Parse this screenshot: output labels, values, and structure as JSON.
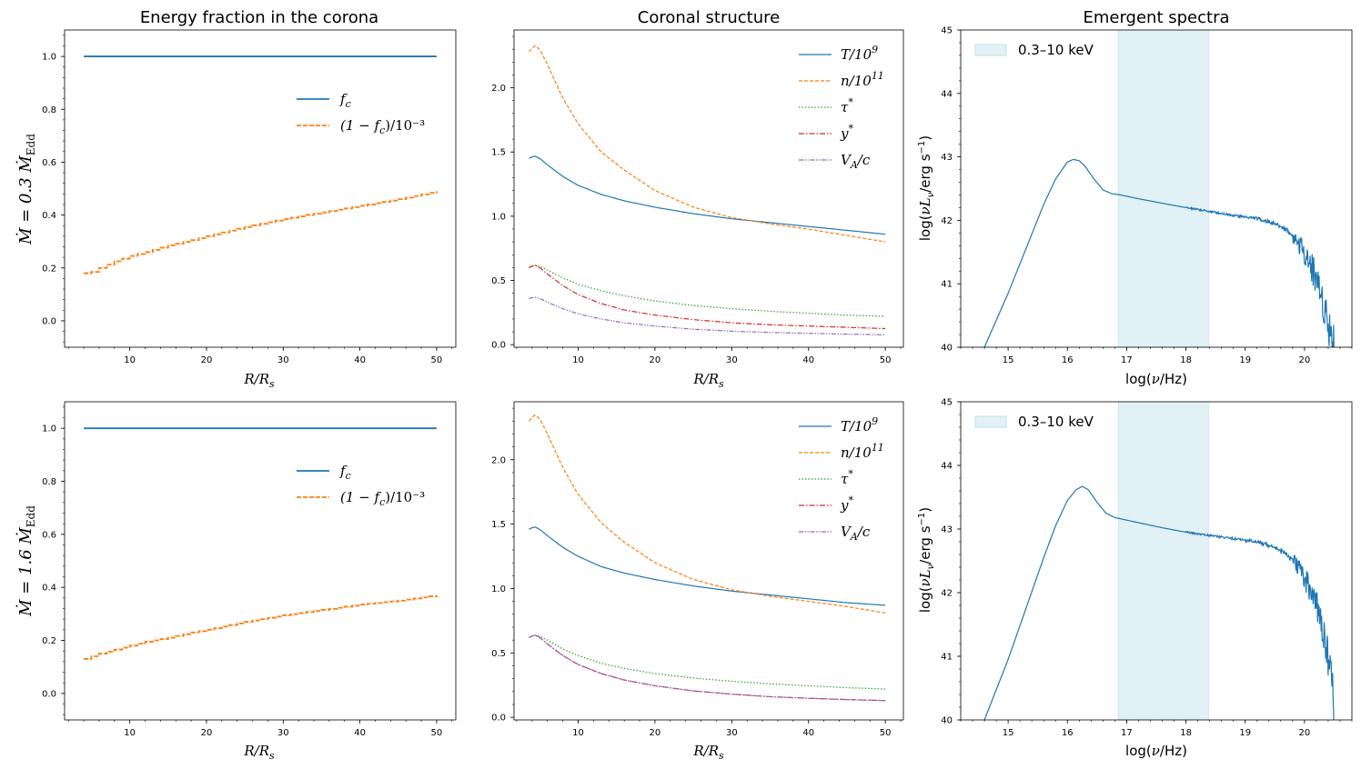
{
  "colors": {
    "blue": "#1f77b4",
    "orange": "#ff7f0e",
    "green": "#2ca02c",
    "red": "#d62728",
    "purple": "#9467bd",
    "band": "#add8e6"
  },
  "chart_data": [
    {
      "id": "p00",
      "type": "line",
      "title": "Energy fraction in the corona",
      "xlabel": "R/R_s",
      "ylabel": "Ṁ = 0.3 Ṁ_Edd",
      "xlim": [
        1.5,
        52.5
      ],
      "ylim": [
        -0.1,
        1.1
      ],
      "xticks": [
        10,
        20,
        30,
        40,
        50
      ],
      "yticks": [
        0.0,
        0.2,
        0.4,
        0.6,
        0.8,
        1.0
      ],
      "xticklabels": [
        "10",
        "20",
        "30",
        "40",
        "50"
      ],
      "yticklabels": [
        "0.0",
        "0.2",
        "0.4",
        "0.6",
        "0.8",
        "1.0"
      ],
      "legend": {
        "location": "center-right"
      },
      "series": [
        {
          "name": "f_c",
          "label_main": "f",
          "label_sub": "c",
          "label_tail": "",
          "color": "blue",
          "dash": "",
          "x": [
            4,
            50
          ],
          "y": [
            1.0,
            1.0
          ]
        },
        {
          "name": "(1 - f_c)/10^-3",
          "label_main": "(1 − f",
          "label_sub": "c",
          "label_tail": ")/10⁻³",
          "color": "orange",
          "dash": "5,2",
          "x": [
            4,
            5,
            6,
            8,
            10,
            12,
            15,
            18,
            20,
            25,
            30,
            35,
            40,
            45,
            50
          ],
          "y": [
            0.18,
            0.185,
            0.2,
            0.225,
            0.245,
            0.26,
            0.285,
            0.305,
            0.32,
            0.355,
            0.385,
            0.41,
            0.435,
            0.46,
            0.49
          ]
        }
      ]
    },
    {
      "id": "p01",
      "type": "line",
      "title": "Coronal structure",
      "xlabel": "R/R_s",
      "xlim": [
        1.65,
        52.35
      ],
      "ylim": [
        -0.02,
        2.45
      ],
      "xticks": [
        10,
        20,
        30,
        40,
        50
      ],
      "yticks": [
        0.0,
        0.5,
        1.0,
        1.5,
        2.0
      ],
      "xticklabels": [
        "10",
        "20",
        "30",
        "40",
        "50"
      ],
      "yticklabels": [
        "0.0",
        "0.5",
        "1.0",
        "1.5",
        "2.0"
      ],
      "legend": {
        "location": "upper-right"
      },
      "series": [
        {
          "name": "T/10^9",
          "label_main": "T/10",
          "label_sup": "9",
          "color": "blue",
          "dash": "",
          "x": [
            3.6,
            4.3,
            5,
            6,
            8,
            10,
            13,
            16,
            20,
            25,
            30,
            35,
            40,
            45,
            50
          ],
          "y": [
            1.45,
            1.47,
            1.45,
            1.4,
            1.31,
            1.24,
            1.17,
            1.12,
            1.07,
            1.02,
            0.98,
            0.95,
            0.92,
            0.89,
            0.86
          ]
        },
        {
          "name": "n/10^11",
          "label_main": "n/10",
          "label_sup": "11",
          "color": "orange",
          "dash": "4,2",
          "x": [
            3.6,
            4.3,
            5,
            6,
            8,
            10,
            13,
            16,
            20,
            25,
            30,
            35,
            40,
            45,
            50
          ],
          "y": [
            2.28,
            2.33,
            2.3,
            2.18,
            1.92,
            1.72,
            1.5,
            1.36,
            1.2,
            1.07,
            0.99,
            0.94,
            0.9,
            0.85,
            0.8
          ]
        },
        {
          "name": "tau*",
          "label_main": "τ",
          "label_sup": "*",
          "color": "green",
          "dash": "1.5,2",
          "x": [
            3.6,
            4.3,
            5,
            6,
            8,
            10,
            13,
            16,
            20,
            25,
            30,
            35,
            40,
            45,
            50
          ],
          "y": [
            0.6,
            0.62,
            0.61,
            0.58,
            0.52,
            0.47,
            0.42,
            0.38,
            0.34,
            0.305,
            0.28,
            0.26,
            0.245,
            0.23,
            0.22
          ]
        },
        {
          "name": "y*",
          "label_main": "y",
          "label_sup": "*",
          "color": "red",
          "dash": "6,2,1.5,2",
          "x": [
            3.6,
            4.3,
            5,
            6,
            8,
            10,
            13,
            16,
            20,
            25,
            30,
            35,
            40,
            45,
            50
          ],
          "y": [
            0.6,
            0.62,
            0.6,
            0.55,
            0.46,
            0.39,
            0.32,
            0.27,
            0.23,
            0.195,
            0.17,
            0.155,
            0.145,
            0.135,
            0.125
          ]
        },
        {
          "name": "V_A/c",
          "label_main": "V",
          "label_sub": "A",
          "label_tail": "/c",
          "color": "purple",
          "dash": "5,1.5,1.5,1.5,1.5,1.5",
          "x": [
            3.6,
            4.3,
            5,
            6,
            8,
            10,
            13,
            16,
            20,
            25,
            30,
            35,
            40,
            45,
            50
          ],
          "y": [
            0.36,
            0.37,
            0.36,
            0.33,
            0.28,
            0.24,
            0.2,
            0.17,
            0.145,
            0.12,
            0.105,
            0.095,
            0.088,
            0.082,
            0.077
          ]
        }
      ]
    },
    {
      "id": "p02",
      "type": "line",
      "title": "Emergent spectra",
      "xlabel": "log(ν/Hz)",
      "ylabel": "log(νL_ν/erg s^-1)",
      "xlim": [
        14.2,
        20.8
      ],
      "ylim": [
        40,
        45
      ],
      "xticks": [
        15,
        16,
        17,
        18,
        19,
        20
      ],
      "yticks": [
        40,
        41,
        42,
        43,
        44,
        45
      ],
      "xticklabels": [
        "15",
        "16",
        "17",
        "18",
        "19",
        "20"
      ],
      "yticklabels": [
        "40",
        "41",
        "42",
        "43",
        "44",
        "45"
      ],
      "band": {
        "x0": 16.86,
        "x1": 18.38,
        "label": "0.3–10 keV"
      },
      "legend": {
        "location": "upper-left"
      },
      "series": [
        {
          "name": "spectrum",
          "color": "blue",
          "dash": "",
          "x": [
            14.6,
            15.0,
            15.3,
            15.6,
            15.8,
            16.0,
            16.1,
            16.2,
            16.3,
            16.45,
            16.6,
            16.75,
            16.9,
            17.2,
            17.6,
            18.0,
            18.4,
            18.8,
            19.2,
            19.5,
            19.7,
            19.85,
            20.0,
            20.1,
            20.2,
            20.3,
            20.4,
            20.45,
            20.5
          ],
          "y": [
            40.0,
            40.85,
            41.55,
            42.25,
            42.65,
            42.92,
            42.96,
            42.94,
            42.85,
            42.65,
            42.48,
            42.42,
            42.4,
            42.34,
            42.27,
            42.2,
            42.14,
            42.08,
            42.03,
            41.95,
            41.85,
            41.7,
            41.5,
            41.3,
            41.1,
            40.75,
            40.4,
            40.2,
            40.0
          ]
        }
      ]
    },
    {
      "id": "p10",
      "type": "line",
      "title": "",
      "xlabel": "R/R_s",
      "ylabel": "Ṁ = 1.6 Ṁ_Edd",
      "xlim": [
        1.5,
        52.5
      ],
      "ylim": [
        -0.1,
        1.1
      ],
      "xticks": [
        10,
        20,
        30,
        40,
        50
      ],
      "yticks": [
        0.0,
        0.2,
        0.4,
        0.6,
        0.8,
        1.0
      ],
      "xticklabels": [
        "10",
        "20",
        "30",
        "40",
        "50"
      ],
      "yticklabels": [
        "0.0",
        "0.2",
        "0.4",
        "0.6",
        "0.8",
        "1.0"
      ],
      "legend": {
        "location": "center-right"
      },
      "series": [
        {
          "name": "f_c",
          "label_main": "f",
          "label_sub": "c",
          "label_tail": "",
          "color": "blue",
          "dash": "",
          "x": [
            4,
            50
          ],
          "y": [
            1.0,
            1.0
          ]
        },
        {
          "name": "(1 - f_c)/10^-3",
          "label_main": "(1 − f",
          "label_sub": "c",
          "label_tail": ")/10⁻³",
          "color": "orange",
          "dash": "5,2",
          "x": [
            4,
            5,
            6,
            8,
            10,
            12,
            15,
            18,
            20,
            25,
            30,
            35,
            40,
            45,
            50
          ],
          "y": [
            0.13,
            0.14,
            0.15,
            0.165,
            0.18,
            0.195,
            0.21,
            0.23,
            0.24,
            0.27,
            0.295,
            0.315,
            0.335,
            0.35,
            0.37
          ]
        }
      ]
    },
    {
      "id": "p11",
      "type": "line",
      "title": "",
      "xlabel": "R/R_s",
      "xlim": [
        1.65,
        52.35
      ],
      "ylim": [
        -0.02,
        2.45
      ],
      "xticks": [
        10,
        20,
        30,
        40,
        50
      ],
      "yticks": [
        0.0,
        0.5,
        1.0,
        1.5,
        2.0
      ],
      "xticklabels": [
        "10",
        "20",
        "30",
        "40",
        "50"
      ],
      "yticklabels": [
        "0.0",
        "0.5",
        "1.0",
        "1.5",
        "2.0"
      ],
      "legend": {
        "location": "upper-right"
      },
      "series": [
        {
          "name": "T/10^9",
          "label_main": "T/10",
          "label_sup": "9",
          "color": "blue",
          "dash": "",
          "x": [
            3.6,
            4.3,
            5,
            6,
            8,
            10,
            13,
            16,
            20,
            25,
            30,
            35,
            40,
            45,
            50
          ],
          "y": [
            1.46,
            1.48,
            1.46,
            1.41,
            1.32,
            1.25,
            1.17,
            1.12,
            1.07,
            1.02,
            0.98,
            0.95,
            0.92,
            0.89,
            0.87
          ]
        },
        {
          "name": "n/10^11",
          "label_main": "n/10",
          "label_sup": "11",
          "color": "orange",
          "dash": "4,2",
          "x": [
            3.6,
            4.3,
            5,
            6,
            8,
            10,
            13,
            16,
            20,
            25,
            30,
            35,
            40,
            45,
            50
          ],
          "y": [
            2.3,
            2.35,
            2.32,
            2.2,
            1.94,
            1.73,
            1.51,
            1.36,
            1.2,
            1.07,
            0.99,
            0.94,
            0.9,
            0.86,
            0.81
          ]
        },
        {
          "name": "tau*",
          "label_main": "τ",
          "label_sup": "*",
          "color": "green",
          "dash": "1.5,2",
          "x": [
            3.6,
            4.3,
            5,
            6,
            8,
            10,
            13,
            16,
            20,
            25,
            30,
            35,
            40,
            45,
            50
          ],
          "y": [
            0.62,
            0.64,
            0.63,
            0.6,
            0.53,
            0.48,
            0.42,
            0.38,
            0.34,
            0.305,
            0.28,
            0.26,
            0.245,
            0.23,
            0.22
          ]
        },
        {
          "name": "y*",
          "label_main": "y",
          "label_sup": "*",
          "color": "red",
          "dash": "6,2,1.5,2",
          "x": [
            3.6,
            4.3,
            5,
            6,
            8,
            10,
            13,
            16,
            20,
            25,
            30,
            35,
            40,
            45,
            50
          ],
          "y": [
            0.62,
            0.64,
            0.62,
            0.57,
            0.48,
            0.41,
            0.34,
            0.29,
            0.245,
            0.205,
            0.18,
            0.16,
            0.148,
            0.138,
            0.13
          ]
        },
        {
          "name": "V_A/c",
          "label_main": "V",
          "label_sub": "A",
          "label_tail": "/c",
          "color": "purple",
          "dash": "5,1.5,1.5,1.5,1.5,1.5",
          "x": [
            3.6,
            4.3,
            5,
            6,
            8,
            10,
            13,
            16,
            20,
            25,
            30,
            35,
            40,
            45,
            50
          ],
          "y": [
            0.62,
            0.64,
            0.62,
            0.57,
            0.48,
            0.41,
            0.34,
            0.29,
            0.245,
            0.205,
            0.18,
            0.16,
            0.148,
            0.138,
            0.13
          ]
        }
      ]
    },
    {
      "id": "p12",
      "type": "line",
      "title": "",
      "xlabel": "log(ν/Hz)",
      "ylabel": "log(νL_ν/erg s^-1)",
      "xlim": [
        14.2,
        20.8
      ],
      "ylim": [
        40,
        45
      ],
      "xticks": [
        15,
        16,
        17,
        18,
        19,
        20
      ],
      "yticks": [
        40,
        41,
        42,
        43,
        44,
        45
      ],
      "xticklabels": [
        "15",
        "16",
        "17",
        "18",
        "19",
        "20"
      ],
      "yticklabels": [
        "40",
        "41",
        "42",
        "43",
        "44",
        "45"
      ],
      "band": {
        "x0": 16.86,
        "x1": 18.38,
        "label": "0.3–10 keV"
      },
      "legend": {
        "location": "upper-left"
      },
      "series": [
        {
          "name": "spectrum",
          "color": "blue",
          "dash": "",
          "x": [
            14.6,
            15.0,
            15.3,
            15.6,
            15.8,
            16.0,
            16.15,
            16.25,
            16.35,
            16.5,
            16.65,
            16.8,
            16.95,
            17.2,
            17.6,
            18.0,
            18.4,
            18.8,
            19.2,
            19.5,
            19.7,
            19.85,
            20.0,
            20.1,
            20.2,
            20.3,
            20.4,
            20.48,
            20.5
          ],
          "y": [
            40.0,
            40.95,
            41.75,
            42.55,
            43.05,
            43.45,
            43.62,
            43.67,
            43.62,
            43.42,
            43.25,
            43.18,
            43.15,
            43.1,
            43.02,
            42.95,
            42.9,
            42.85,
            42.8,
            42.72,
            42.6,
            42.45,
            42.25,
            42.05,
            41.8,
            41.5,
            41.0,
            40.5,
            40.0
          ]
        }
      ]
    }
  ]
}
